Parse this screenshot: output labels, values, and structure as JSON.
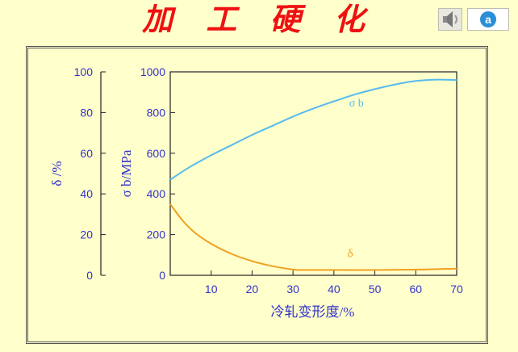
{
  "header": {
    "title": "加 工 硬 化",
    "audio_icon": "speaker-icon",
    "logo_icon": "logo-a-icon",
    "logo_letter": "a"
  },
  "colors": {
    "background": "#ffffcc",
    "title": "#ee1111",
    "axis": "#3333cc",
    "sigma_b": "#55bbee",
    "delta": "#f0a020"
  },
  "chart_data": {
    "type": "line",
    "xlabel": "冷轧变形度/%",
    "xlim": [
      0,
      70
    ],
    "x_ticks": [
      10,
      20,
      30,
      40,
      50,
      60,
      70
    ],
    "y_axes": [
      {
        "id": "delta",
        "label": "δ /%",
        "lim": [
          0,
          100
        ],
        "ticks": [
          0,
          20,
          40,
          60,
          80,
          100
        ]
      },
      {
        "id": "sigma_b",
        "label": "σ b/MPa",
        "lim": [
          0,
          1000
        ],
        "ticks": [
          0,
          200,
          400,
          600,
          800,
          1000
        ]
      }
    ],
    "grid": false,
    "series": [
      {
        "name": "σ b",
        "axis": "sigma_b",
        "color": "#55bbee",
        "x": [
          0,
          5,
          10,
          15,
          20,
          25,
          30,
          35,
          40,
          45,
          50,
          55,
          60,
          65,
          70
        ],
        "y": [
          470,
          535,
          590,
          640,
          690,
          735,
          780,
          820,
          855,
          888,
          915,
          938,
          955,
          962,
          960
        ]
      },
      {
        "name": "δ",
        "axis": "delta",
        "color": "#f0a020",
        "x": [
          0,
          3,
          6,
          10,
          15,
          20,
          25,
          30,
          32,
          40,
          50,
          60,
          70
        ],
        "y": [
          35,
          27,
          21,
          15.5,
          10.5,
          7,
          4.5,
          2.8,
          2.6,
          2.6,
          2.6,
          2.8,
          3.3
        ]
      }
    ]
  }
}
